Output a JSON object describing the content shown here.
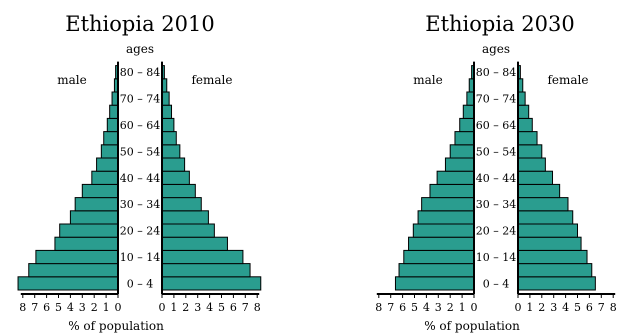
{
  "chart_data": [
    {
      "type": "bar",
      "orientation": "horizontal-pyramid",
      "title": "Ethiopia 2010",
      "xlabel": "% of population",
      "ylabel": "ages",
      "left_label": "male",
      "right_label": "female",
      "age_groups": [
        "0 – 4",
        "5 – 9",
        "10 – 14",
        "15 – 19",
        "20 – 24",
        "25 – 29",
        "30 – 34",
        "35 – 39",
        "40 – 44",
        "45 – 49",
        "50 – 54",
        "55 – 59",
        "60 – 64",
        "65 – 69",
        "70 – 74",
        "75 – 79",
        "80 – 84"
      ],
      "age_labels_shown": [
        "0 – 4",
        "10 – 14",
        "20 – 24",
        "30 – 34",
        "40 – 44",
        "50 – 54",
        "60 – 64",
        "70 – 74",
        "80 – 84"
      ],
      "series": [
        {
          "name": "male",
          "values": [
            8.4,
            7.5,
            6.9,
            5.3,
            4.9,
            4.0,
            3.6,
            3.0,
            2.2,
            1.8,
            1.4,
            1.2,
            0.9,
            0.7,
            0.5,
            0.3,
            0.2
          ]
        },
        {
          "name": "female",
          "values": [
            8.3,
            7.4,
            6.8,
            5.5,
            4.4,
            3.9,
            3.3,
            2.8,
            2.3,
            1.9,
            1.5,
            1.2,
            1.0,
            0.8,
            0.6,
            0.4,
            0.2
          ]
        }
      ],
      "xlim": [
        0,
        8
      ],
      "xticks": [
        "8",
        "7",
        "6",
        "5",
        "4",
        "3",
        "2",
        "1",
        "0",
        "0",
        "1",
        "2",
        "3",
        "4",
        "5",
        "6",
        "7",
        "8"
      ]
    },
    {
      "type": "bar",
      "orientation": "horizontal-pyramid",
      "title": "Ethiopia 2030",
      "xlabel": "% of population",
      "ylabel": "ages",
      "left_label": "male",
      "right_label": "female",
      "age_groups": [
        "0 – 4",
        "5 – 9",
        "10 – 14",
        "15 – 19",
        "20 – 24",
        "25 – 29",
        "30 – 34",
        "35 – 39",
        "40 – 44",
        "45 – 49",
        "50 – 54",
        "55 – 59",
        "60 – 64",
        "65 – 69",
        "70 – 74",
        "75 – 79",
        "80 – 84"
      ],
      "age_labels_shown": [
        "0 – 4",
        "10 – 14",
        "20 – 24",
        "30 – 34",
        "40 – 44",
        "50 – 54",
        "60 – 64",
        "70 – 74",
        "80 – 84"
      ],
      "series": [
        {
          "name": "male",
          "values": [
            6.6,
            6.3,
            5.9,
            5.5,
            5.1,
            4.7,
            4.4,
            3.7,
            3.1,
            2.4,
            2.0,
            1.6,
            1.2,
            0.9,
            0.6,
            0.4,
            0.2
          ]
        },
        {
          "name": "female",
          "values": [
            6.5,
            6.2,
            5.8,
            5.3,
            5.0,
            4.6,
            4.2,
            3.5,
            2.9,
            2.3,
            2.0,
            1.6,
            1.2,
            0.9,
            0.6,
            0.4,
            0.2
          ]
        }
      ],
      "xlim": [
        0,
        8
      ],
      "xticks": [
        "8",
        "7",
        "6",
        "5",
        "4",
        "3",
        "2",
        "1",
        "0",
        "0",
        "1",
        "2",
        "3",
        "4",
        "5",
        "6",
        "7",
        "8"
      ]
    }
  ]
}
